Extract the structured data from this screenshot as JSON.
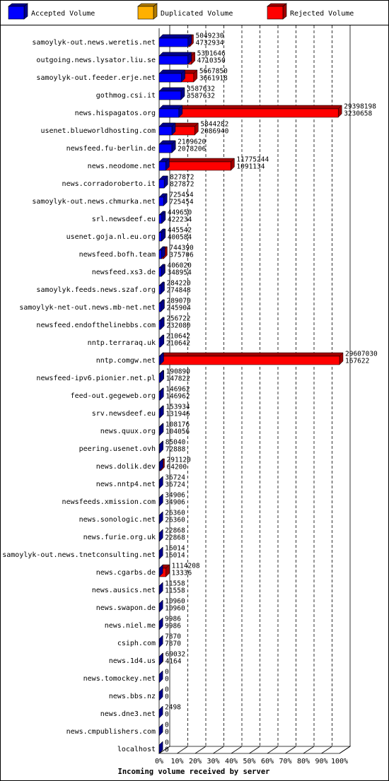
{
  "chart_data": {
    "type": "bar3d",
    "orientation": "horizontal",
    "title": "Incoming volume received by server",
    "legend": [
      {
        "name": "Accepted Volume",
        "color": "#0000ff"
      },
      {
        "name": "Duplicated Volume",
        "color": "#ffb000"
      },
      {
        "name": "Rejected Volume",
        "color": "#ff0000"
      }
    ],
    "xlim": [
      0,
      100
    ],
    "xticks": [
      {
        "value": 0,
        "label": "0%"
      },
      {
        "value": 10,
        "label": "10%"
      },
      {
        "value": 20,
        "label": "20%"
      },
      {
        "value": 30,
        "label": "30%"
      },
      {
        "value": 40,
        "label": "40%"
      },
      {
        "value": 50,
        "label": "50%"
      },
      {
        "value": 60,
        "label": "60%"
      },
      {
        "value": 70,
        "label": "70%"
      },
      {
        "value": 80,
        "label": "80%"
      },
      {
        "value": 90,
        "label": "90%"
      },
      {
        "value": 100,
        "label": "100%"
      }
    ],
    "grid": true,
    "categories": [
      "samoylyk-out.news.weretis.net",
      "outgoing.news.lysator.liu.se",
      "samoylyk-out.feeder.erje.net",
      "gothmog.csi.it",
      "news.hispagatos.org",
      "usenet.blueworldhosting.com",
      "newsfeed.fu-berlin.de",
      "news.neodome.net",
      "news.corradoroberto.it",
      "samoylyk-out.news.chmurka.net",
      "srl.newsdeef.eu",
      "usenet.goja.nl.eu.org",
      "newsfeed.bofh.team",
      "newsfeed.xs3.de",
      "samoylyk.feeds.news.szaf.org",
      "samoylyk-net-out.news.mb-net.net",
      "newsfeed.endofthelinebbs.com",
      "nntp.terraraq.uk",
      "nntp.comgw.net",
      "newsfeed-ipv6.pionier.net.pl",
      "feed-out.gegeweb.org",
      "srv.newsdeef.eu",
      "news.quux.org",
      "peering.usenet.ovh",
      "news.dolik.dev",
      "news.nntp4.net",
      "newsfeeds.xmission.com",
      "news.sonologic.net",
      "news.furie.org.uk",
      "samoylyk-out.news.tnetconsulting.net",
      "news.cgarbs.de",
      "news.ausics.net",
      "news.swapon.de",
      "news.niel.me",
      "csiph.com",
      "news.1d4.us",
      "news.tomockey.net",
      "news.bbs.nz",
      "news.dne3.net",
      "news.cmpublishers.com",
      "localhost"
    ],
    "offered": [
      5049230,
      5301646,
      5667850,
      3587632,
      29398198,
      5844282,
      2109620,
      11775244,
      827872,
      725454,
      449650,
      445542,
      744390,
      406020,
      284220,
      289070,
      256722,
      210642,
      29607030,
      190890,
      146962,
      153934,
      108176,
      85040,
      291120,
      36724,
      34906,
      26360,
      22868,
      16014,
      1114208,
      11558,
      10960,
      9986,
      7870,
      69032,
      0,
      0,
      2498,
      0,
      0
    ],
    "accepted": [
      4732934,
      4710350,
      3661918,
      3587632,
      3230658,
      2086940,
      2078206,
      1091134,
      827872,
      725454,
      422234,
      400584,
      375706,
      348954,
      274848,
      245904,
      232080,
      210642,
      167622,
      147822,
      146962,
      131946,
      104056,
      72888,
      64200,
      36724,
      34906,
      26360,
      22868,
      16014,
      13336,
      11558,
      10960,
      9986,
      7870,
      4164,
      0,
      0,
      0,
      0,
      0
    ]
  }
}
